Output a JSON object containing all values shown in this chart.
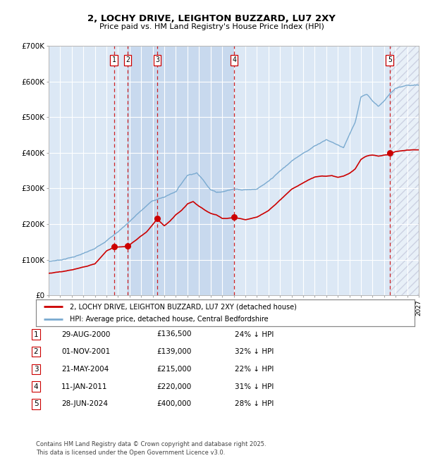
{
  "title": "2, LOCHY DRIVE, LEIGHTON BUZZARD, LU7 2XY",
  "subtitle": "Price paid vs. HM Land Registry's House Price Index (HPI)",
  "xlim_start": 1995.0,
  "xlim_end": 2027.0,
  "ylim": [
    0,
    700000
  ],
  "yticks": [
    0,
    100000,
    200000,
    300000,
    400000,
    500000,
    600000,
    700000
  ],
  "ytick_labels": [
    "£0",
    "£100K",
    "£200K",
    "£300K",
    "£400K",
    "£500K",
    "£600K",
    "£700K"
  ],
  "sale_dates": [
    2000.66,
    2001.83,
    2004.38,
    2011.03,
    2024.49
  ],
  "sale_prices": [
    136500,
    139000,
    215000,
    220000,
    400000
  ],
  "sale_labels": [
    "1",
    "2",
    "3",
    "4",
    "5"
  ],
  "hpi_color": "#7aaad0",
  "price_color": "#cc0000",
  "vline_color": "#cc0000",
  "shade_pairs": [
    [
      2001.83,
      2011.03
    ]
  ],
  "legend_price_label": "2, LOCHY DRIVE, LEIGHTON BUZZARD, LU7 2XY (detached house)",
  "legend_hpi_label": "HPI: Average price, detached house, Central Bedfordshire",
  "table_entries": [
    {
      "num": "1",
      "date": "29-AUG-2000",
      "price": "£136,500",
      "pct": "24% ↓ HPI"
    },
    {
      "num": "2",
      "date": "01-NOV-2001",
      "price": "£139,000",
      "pct": "32% ↓ HPI"
    },
    {
      "num": "3",
      "date": "21-MAY-2004",
      "price": "£215,000",
      "pct": "22% ↓ HPI"
    },
    {
      "num": "4",
      "date": "11-JAN-2011",
      "price": "£220,000",
      "pct": "31% ↓ HPI"
    },
    {
      "num": "5",
      "date": "28-JUN-2024",
      "price": "£400,000",
      "pct": "28% ↓ HPI"
    }
  ],
  "footnote": "Contains HM Land Registry data © Crown copyright and database right 2025.\nThis data is licensed under the Open Government Licence v3.0.",
  "hatch_region_start": 2024.49,
  "hatch_region_end": 2027.0,
  "chart_bg": "#dce8f5",
  "shade_color": "#c0d4ec"
}
